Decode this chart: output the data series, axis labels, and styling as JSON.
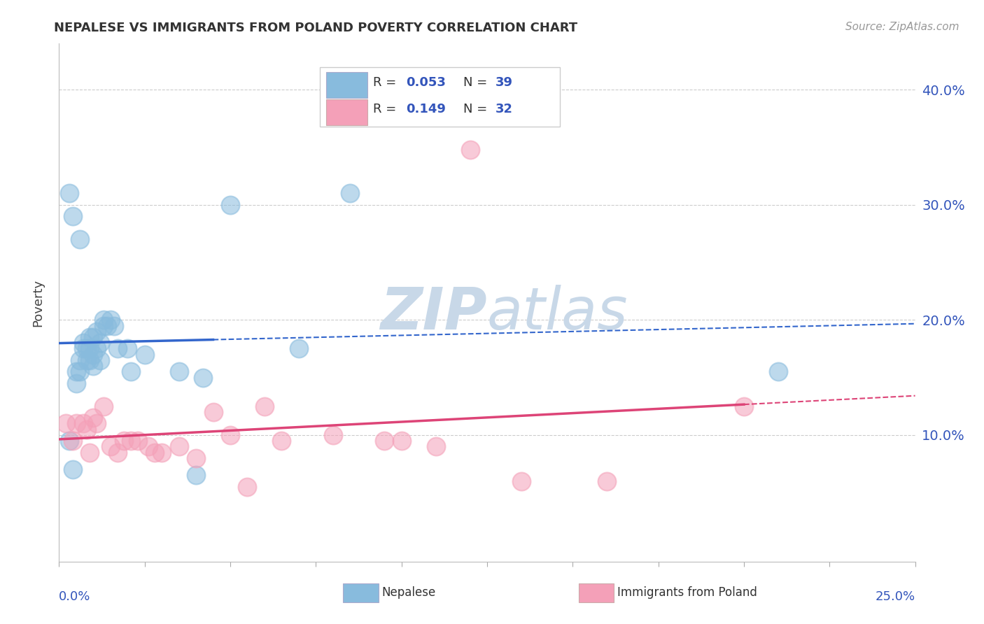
{
  "title": "NEPALESE VS IMMIGRANTS FROM POLAND POVERTY CORRELATION CHART",
  "source": "Source: ZipAtlas.com",
  "ylabel": "Poverty",
  "xlim": [
    0.0,
    0.25
  ],
  "ylim": [
    -0.01,
    0.44
  ],
  "yticks": [
    0.1,
    0.2,
    0.3,
    0.4
  ],
  "ytick_labels": [
    "10.0%",
    "20.0%",
    "30.0%",
    "40.0%"
  ],
  "blue_color": "#88bbdd",
  "pink_color": "#f4a0b8",
  "trend_blue": "#3366cc",
  "trend_pink": "#dd4477",
  "watermark_color": "#c8d8e8",
  "grid_color": "#cccccc",
  "background": "#ffffff",
  "nepalese_x": [
    0.003,
    0.004,
    0.005,
    0.005,
    0.006,
    0.006,
    0.007,
    0.007,
    0.008,
    0.008,
    0.009,
    0.009,
    0.009,
    0.01,
    0.01,
    0.01,
    0.011,
    0.011,
    0.012,
    0.012,
    0.013,
    0.013,
    0.014,
    0.015,
    0.016,
    0.017,
    0.02,
    0.021,
    0.025,
    0.035,
    0.04,
    0.042,
    0.05,
    0.07,
    0.085,
    0.21,
    0.003,
    0.004,
    0.006
  ],
  "nepalese_y": [
    0.095,
    0.07,
    0.145,
    0.155,
    0.155,
    0.165,
    0.175,
    0.18,
    0.165,
    0.175,
    0.185,
    0.165,
    0.175,
    0.17,
    0.16,
    0.185,
    0.19,
    0.175,
    0.18,
    0.165,
    0.2,
    0.195,
    0.195,
    0.2,
    0.195,
    0.175,
    0.175,
    0.155,
    0.17,
    0.155,
    0.065,
    0.15,
    0.3,
    0.175,
    0.31,
    0.155,
    0.31,
    0.29,
    0.27
  ],
  "poland_x": [
    0.002,
    0.004,
    0.005,
    0.007,
    0.008,
    0.009,
    0.01,
    0.011,
    0.013,
    0.015,
    0.017,
    0.019,
    0.021,
    0.023,
    0.026,
    0.028,
    0.03,
    0.035,
    0.04,
    0.045,
    0.05,
    0.055,
    0.06,
    0.065,
    0.08,
    0.095,
    0.1,
    0.11,
    0.12,
    0.135,
    0.16,
    0.2
  ],
  "poland_y": [
    0.11,
    0.095,
    0.11,
    0.11,
    0.105,
    0.085,
    0.115,
    0.11,
    0.125,
    0.09,
    0.085,
    0.095,
    0.095,
    0.095,
    0.09,
    0.085,
    0.085,
    0.09,
    0.08,
    0.12,
    0.1,
    0.055,
    0.125,
    0.095,
    0.1,
    0.095,
    0.095,
    0.09,
    0.348,
    0.06,
    0.06,
    0.125
  ]
}
